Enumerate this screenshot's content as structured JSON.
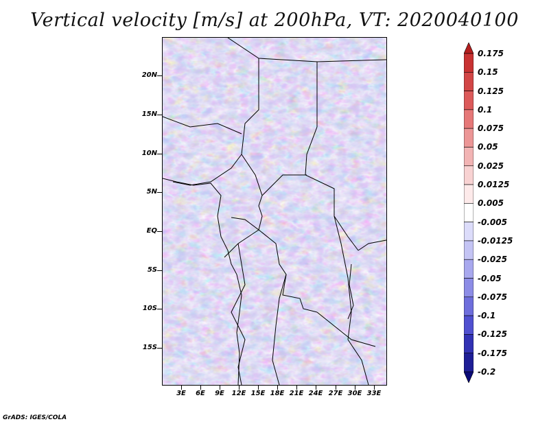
{
  "title": "Vertical velocity [m/s] at 200hPa, VT: 2020040100",
  "credit": "GrADS: IGES/COLA",
  "y_axis_labels": [
    "20N",
    "15N",
    "10N",
    "5N",
    "EQ",
    "5S",
    "10S",
    "15S"
  ],
  "x_axis_labels": [
    "3E",
    "6E",
    "9E",
    "12E",
    "15E",
    "18E",
    "21E",
    "24E",
    "27E",
    "30E",
    "33E"
  ],
  "colorbar": {
    "labels": [
      "0.175",
      "0.15",
      "0.125",
      "0.1",
      "0.075",
      "0.05",
      "0.025",
      "0.0125",
      "0.005",
      "-0.005",
      "-0.0125",
      "-0.025",
      "-0.05",
      "-0.075",
      "-0.1",
      "-0.125",
      "-0.175",
      "-0.2"
    ],
    "colors": [
      "#b41e1e",
      "#c83232",
      "#d24646",
      "#dc5a5a",
      "#e67878",
      "#ec9696",
      "#f2b4b4",
      "#f8d2d2",
      "#fdeaea",
      "#ffffff",
      "#dcdcfa",
      "#c4c4f4",
      "#a8a8ee",
      "#8c8ce6",
      "#6e6edc",
      "#5050d0",
      "#3232b4",
      "#1e1e96",
      "#0a0a78"
    ]
  }
}
